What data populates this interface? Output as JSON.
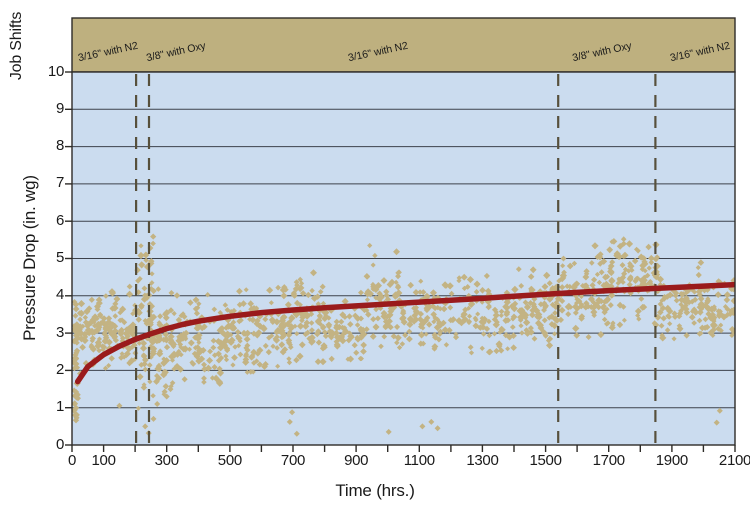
{
  "colors": {
    "plot_bg": "#cbdcef",
    "band": "#beb07f",
    "scatter": "#c3b383",
    "trend": "#9a1b1c",
    "grid": "#3d424b",
    "frame": "#2e2c28",
    "dashed": "#57503c",
    "text": "#1a1a1a"
  },
  "chart_data": {
    "type": "scatter",
    "title": "",
    "xlabel": "Time (hrs.)",
    "ylabel": "Pressure Drop (in. wg)",
    "band_label": "Job Shifts",
    "xlim": [
      0,
      2100
    ],
    "ylim": [
      0,
      10
    ],
    "x_tick_labels": [
      0,
      100,
      300,
      500,
      700,
      900,
      1100,
      1300,
      1500,
      1700,
      1900,
      2100
    ],
    "x_minor_tick_step": 100,
    "y_ticks": [
      0,
      1,
      2,
      3,
      4,
      5,
      6,
      7,
      8,
      9,
      10
    ],
    "grid": "horizontal-only",
    "legend": "none",
    "job_shift_events_x": [
      203,
      244,
      1540,
      1848
    ],
    "job_shift_labels": [
      {
        "label": "3/16\" with N2",
        "x": 115
      },
      {
        "label": "3/8\" with Oxy",
        "x": 330
      },
      {
        "label": "3/16\" with N2",
        "x": 970
      },
      {
        "label": "3/8\" with Oxy",
        "x": 1680
      },
      {
        "label": "3/16\" with N2",
        "x": 1990
      }
    ],
    "trend": {
      "name": "pressure-drop-trend",
      "points": [
        [
          18,
          1.7
        ],
        [
          50,
          2.1
        ],
        [
          100,
          2.42
        ],
        [
          150,
          2.65
        ],
        [
          200,
          2.83
        ],
        [
          250,
          2.98
        ],
        [
          300,
          3.12
        ],
        [
          350,
          3.23
        ],
        [
          400,
          3.32
        ],
        [
          500,
          3.45
        ],
        [
          600,
          3.55
        ],
        [
          700,
          3.62
        ],
        [
          800,
          3.68
        ],
        [
          900,
          3.73
        ],
        [
          1000,
          3.78
        ],
        [
          1100,
          3.83
        ],
        [
          1200,
          3.88
        ],
        [
          1300,
          3.93
        ],
        [
          1400,
          3.99
        ],
        [
          1500,
          4.04
        ],
        [
          1600,
          4.09
        ],
        [
          1700,
          4.14
        ],
        [
          1800,
          4.18
        ],
        [
          1900,
          4.22
        ],
        [
          2000,
          4.26
        ],
        [
          2100,
          4.3
        ]
      ]
    },
    "scatter": {
      "name": "measured-pressure-drop",
      "marker": "diamond",
      "clusters": [
        {
          "x0": 4,
          "x1": 22,
          "n": 40,
          "mean": 2.3,
          "sd": 1.1,
          "min": 0.5,
          "max": 4.0
        },
        {
          "x0": 20,
          "x1": 150,
          "n": 120,
          "mean": 3.15,
          "sd": 0.45,
          "min": 1.9,
          "max": 4.2
        },
        {
          "x0": 150,
          "x1": 205,
          "n": 60,
          "mean": 3.0,
          "sd": 0.6,
          "min": 1.7,
          "max": 4.3
        },
        {
          "x0": 205,
          "x1": 262,
          "n": 75,
          "mean": 3.3,
          "sd": 1.0,
          "min": 0.9,
          "max": 5.7
        },
        {
          "x0": 262,
          "x1": 330,
          "n": 60,
          "mean": 2.7,
          "sd": 0.7,
          "min": 1.2,
          "max": 4.2
        },
        {
          "x0": 330,
          "x1": 480,
          "n": 100,
          "mean": 2.85,
          "sd": 0.55,
          "min": 1.6,
          "max": 4.25
        },
        {
          "x0": 480,
          "x1": 620,
          "n": 90,
          "mean": 3.0,
          "sd": 0.5,
          "min": 1.9,
          "max": 4.3
        },
        {
          "x0": 620,
          "x1": 700,
          "n": 60,
          "mean": 3.1,
          "sd": 0.55,
          "min": 2.0,
          "max": 4.4
        },
        {
          "x0": 700,
          "x1": 790,
          "n": 65,
          "mean": 3.5,
          "sd": 0.6,
          "min": 2.2,
          "max": 4.9
        },
        {
          "x0": 790,
          "x1": 930,
          "n": 85,
          "mean": 3.1,
          "sd": 0.5,
          "min": 2.0,
          "max": 4.3
        },
        {
          "x0": 930,
          "x1": 1040,
          "n": 75,
          "mean": 3.9,
          "sd": 0.65,
          "min": 2.6,
          "max": 5.45
        },
        {
          "x0": 1040,
          "x1": 1250,
          "n": 105,
          "mean": 3.5,
          "sd": 0.45,
          "min": 2.5,
          "max": 4.7
        },
        {
          "x0": 1250,
          "x1": 1450,
          "n": 105,
          "mean": 3.55,
          "sd": 0.5,
          "min": 2.4,
          "max": 4.9
        },
        {
          "x0": 1450,
          "x1": 1545,
          "n": 70,
          "mean": 3.7,
          "sd": 0.5,
          "min": 2.6,
          "max": 4.9
        },
        {
          "x0": 1545,
          "x1": 1700,
          "n": 105,
          "mean": 4.1,
          "sd": 0.55,
          "min": 2.8,
          "max": 5.5
        },
        {
          "x0": 1700,
          "x1": 1860,
          "n": 115,
          "mean": 4.5,
          "sd": 0.55,
          "min": 3.1,
          "max": 5.8
        },
        {
          "x0": 1860,
          "x1": 2000,
          "n": 85,
          "mean": 3.75,
          "sd": 0.5,
          "min": 2.8,
          "max": 5.0
        },
        {
          "x0": 2000,
          "x1": 2100,
          "n": 65,
          "mean": 3.7,
          "sd": 0.42,
          "min": 2.9,
          "max": 4.5
        }
      ],
      "outliers": [
        [
          150,
          1.05
        ],
        [
          232,
          0.5
        ],
        [
          243,
          0.32
        ],
        [
          258,
          0.7
        ],
        [
          270,
          1.1
        ],
        [
          300,
          1.3
        ],
        [
          312,
          1.5
        ],
        [
          690,
          0.62
        ],
        [
          697,
          0.88
        ],
        [
          712,
          0.3
        ],
        [
          1003,
          0.35
        ],
        [
          1110,
          0.5
        ],
        [
          1138,
          0.62
        ],
        [
          1158,
          0.45
        ],
        [
          2042,
          0.6
        ],
        [
          2052,
          0.92
        ]
      ]
    }
  }
}
